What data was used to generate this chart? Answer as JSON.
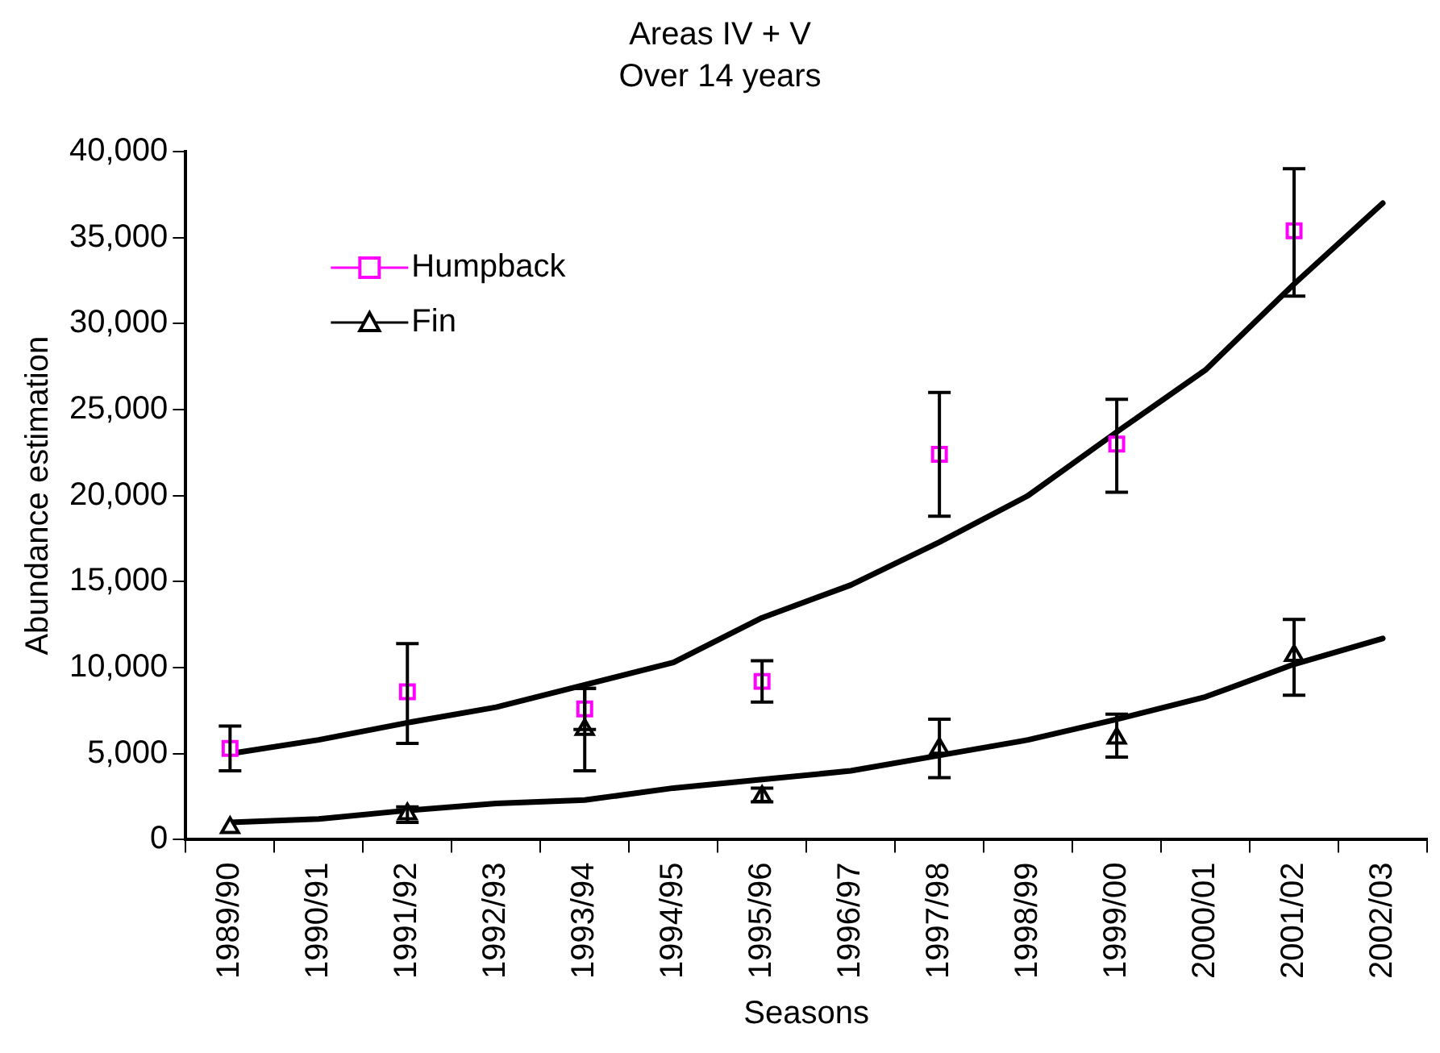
{
  "chart_data": {
    "type": "scatter",
    "title": "Areas IV + V",
    "subtitle": "Over 14 years",
    "xlabel": "Seasons",
    "ylabel": "Abundance estimation",
    "categories": [
      "1989/90",
      "1990/91",
      "1991/92",
      "1992/93",
      "1993/94",
      "1994/95",
      "1995/96",
      "1996/97",
      "1997/98",
      "1998/99",
      "1999/00",
      "2000/01",
      "2001/02",
      "2002/03"
    ],
    "series": [
      {
        "name": "Humpback",
        "marker": "square",
        "color": "#ff00ff",
        "values": [
          5300,
          null,
          8600,
          null,
          7600,
          null,
          9200,
          null,
          22400,
          null,
          23000,
          null,
          35400,
          null
        ],
        "errors": [
          [
            4000,
            6600
          ],
          null,
          [
            5600,
            11400
          ],
          null,
          [
            6400,
            8800
          ],
          null,
          [
            8000,
            10400
          ],
          null,
          [
            18800,
            26000
          ],
          null,
          [
            20200,
            25600
          ],
          null,
          [
            31600,
            39000
          ],
          null
        ]
      },
      {
        "name": "Fin",
        "marker": "triangle",
        "color": "#000000",
        "values": [
          700,
          null,
          1500,
          null,
          6400,
          null,
          2500,
          null,
          5300,
          null,
          5900,
          null,
          10700,
          null
        ],
        "errors": [
          null,
          null,
          [
            1000,
            1900
          ],
          null,
          [
            4000,
            8800
          ],
          null,
          [
            2200,
            3000
          ],
          null,
          [
            3600,
            7000
          ],
          null,
          [
            4800,
            7300
          ],
          null,
          [
            8400,
            12800
          ],
          null
        ]
      },
      {
        "type": "line",
        "marker": "none",
        "color": "#000000",
        "values": [
          5000,
          5800,
          6800,
          7700,
          9000,
          10300,
          12900,
          14800,
          17300,
          20000,
          23700,
          27300,
          32300,
          37000
        ]
      },
      {
        "type": "line",
        "marker": "none",
        "color": "#000000",
        "values": [
          1000,
          1200,
          1700,
          2100,
          2300,
          3000,
          3500,
          4000,
          4900,
          5800,
          7000,
          8300,
          10200,
          11700
        ]
      }
    ],
    "ylim": [
      0,
      40000
    ],
    "yticks": [
      0,
      {
        "value": 5000,
        "label": "5,000"
      },
      {
        "value": 10000,
        "label": "10,000"
      },
      {
        "value": 15000,
        "label": "15,000"
      },
      {
        "value": 20000,
        "label": "20,000"
      },
      {
        "value": 25000,
        "label": "25,000"
      },
      {
        "value": 30000,
        "label": "30,000"
      },
      {
        "value": 35000,
        "label": "35,000"
      },
      {
        "value": 40000,
        "label": "40,000"
      }
    ],
    "grid": false,
    "legend": "top left"
  }
}
